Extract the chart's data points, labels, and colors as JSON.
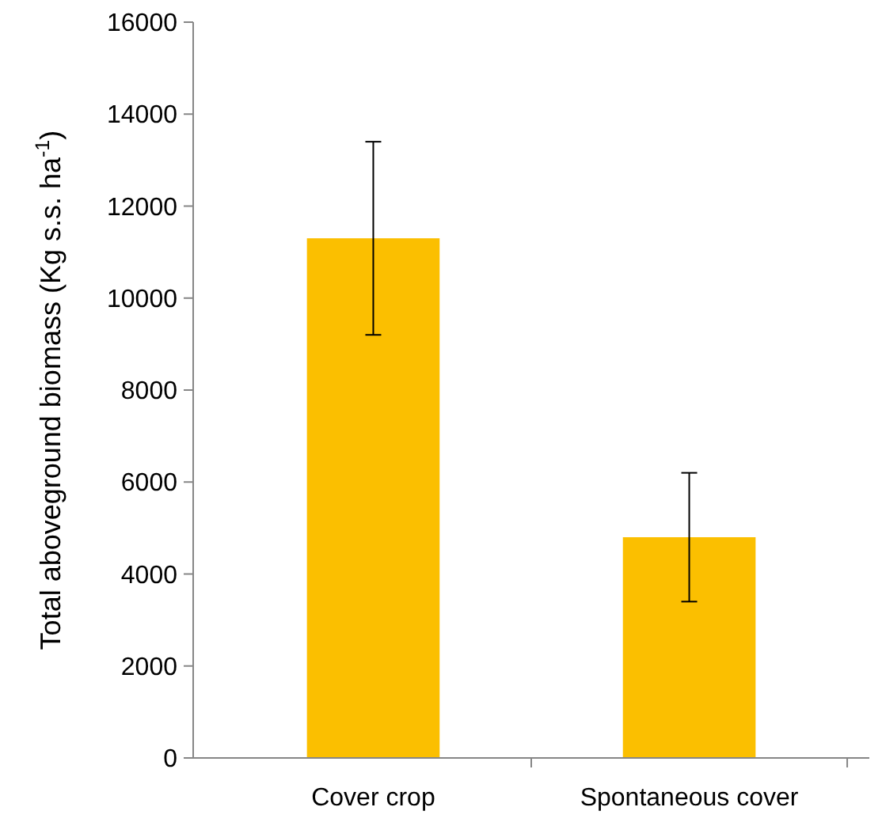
{
  "chart_data": {
    "type": "bar",
    "ylabel": "Total aboveground biomass (Kg s.s. ha$^{-1}$)",
    "categories": [
      "Cover crop",
      "Spontaneous cover"
    ],
    "values": [
      11300,
      4800
    ],
    "errors": [
      2100,
      1400
    ],
    "color": "#fbbf00",
    "ylim": [
      0,
      16000
    ],
    "yticks": [
      0,
      2000,
      4000,
      6000,
      8000,
      10000,
      12000,
      14000,
      16000
    ],
    "grid": false
  }
}
